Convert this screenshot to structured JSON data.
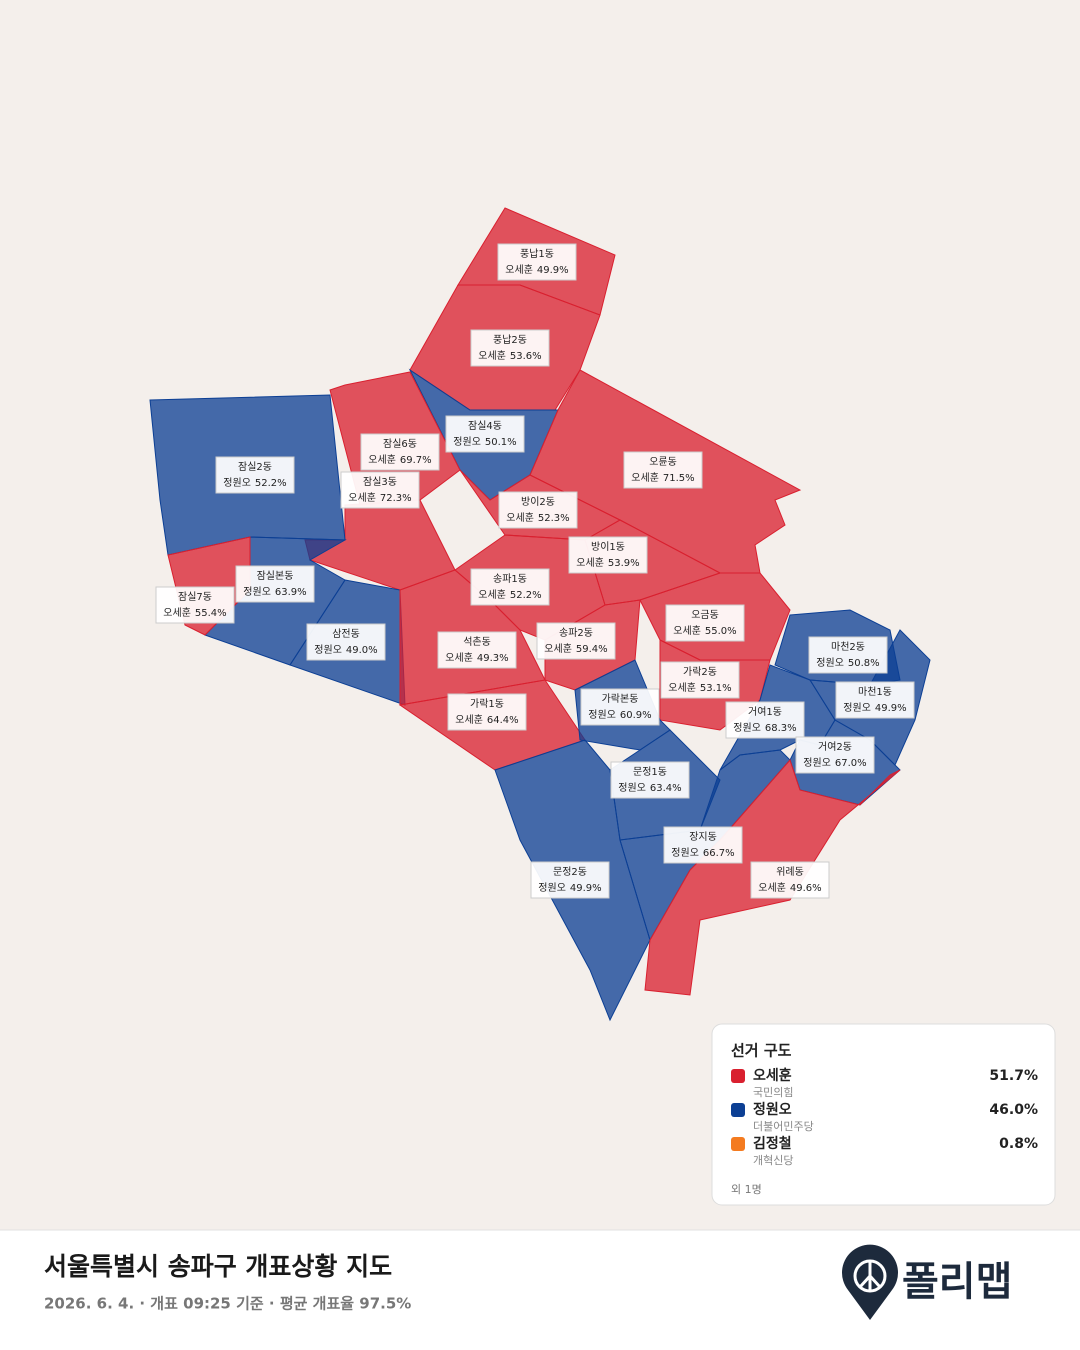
{
  "districts": [
    {
      "name": "풍납1동",
      "candidate": "오세훈",
      "share": "49.9%"
    },
    {
      "name": "풍납2동",
      "candidate": "오세훈",
      "share": "53.6%"
    },
    {
      "name": "잠실4동",
      "candidate": "정원오",
      "share": "50.1%"
    },
    {
      "name": "오륜동",
      "candidate": "오세훈",
      "share": "71.5%"
    },
    {
      "name": "잠실6동",
      "candidate": "오세훈",
      "share": "69.7%"
    },
    {
      "name": "잠실3동",
      "candidate": "오세훈",
      "share": "72.3%"
    },
    {
      "name": "잠실2동",
      "candidate": "정원오",
      "share": "52.2%"
    },
    {
      "name": "방이2동",
      "candidate": "오세훈",
      "share": "52.3%"
    },
    {
      "name": "방이1동",
      "candidate": "오세훈",
      "share": "53.9%"
    },
    {
      "name": "송파1동",
      "candidate": "오세훈",
      "share": "52.2%"
    },
    {
      "name": "잠실본동",
      "candidate": "정원오",
      "share": "63.9%"
    },
    {
      "name": "잠실7동",
      "candidate": "오세훈",
      "share": "55.4%"
    },
    {
      "name": "삼전동",
      "candidate": "정원오",
      "share": "49.0%"
    },
    {
      "name": "석촌동",
      "candidate": "오세훈",
      "share": "49.3%"
    },
    {
      "name": "송파2동",
      "candidate": "오세훈",
      "share": "59.4%"
    },
    {
      "name": "오금동",
      "candidate": "오세훈",
      "share": "55.0%"
    },
    {
      "name": "가락2동",
      "candidate": "오세훈",
      "share": "53.1%"
    },
    {
      "name": "가락1동",
      "candidate": "오세훈",
      "share": "64.4%"
    },
    {
      "name": "가락본동",
      "candidate": "정원오",
      "share": "60.9%"
    },
    {
      "name": "마천2동",
      "candidate": "정원오",
      "share": "50.8%"
    },
    {
      "name": "마천1동",
      "candidate": "정원오",
      "share": "49.9%"
    },
    {
      "name": "거여1동",
      "candidate": "정원오",
      "share": "68.3%"
    },
    {
      "name": "거여2동",
      "candidate": "정원오",
      "share": "67.0%"
    },
    {
      "name": "문정1동",
      "candidate": "정원오",
      "share": "63.4%"
    },
    {
      "name": "문정2동",
      "candidate": "정원오",
      "share": "49.9%"
    },
    {
      "name": "장지동",
      "candidate": "정원오",
      "share": "66.7%"
    },
    {
      "name": "위례동",
      "candidate": "오세훈",
      "share": "49.6%"
    }
  ],
  "legend": {
    "title": "선거 구도",
    "candidates": [
      {
        "name": "오세훈",
        "party": "국민의힘",
        "share": "51.7%",
        "color": "#d9202f"
      },
      {
        "name": "정원오",
        "party": "더불어민주당",
        "share": "46.0%",
        "color": "#0c3f94"
      },
      {
        "name": "김정철",
        "party": "개혁신당",
        "share": "0.8%",
        "color": "#f47b20"
      }
    ],
    "others": "외 1명"
  },
  "footer": {
    "title": "서울특별시 송파구 개표상황 지도",
    "subtitle": "2026. 6. 4. · 개표 09:25 기준 · 평균 개표율 97.5%"
  },
  "logo": "폴리맵"
}
